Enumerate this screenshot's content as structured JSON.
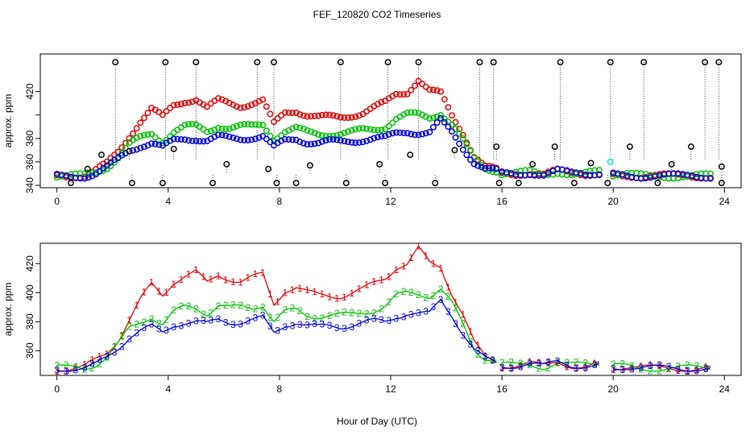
{
  "title": "FEF_120820  CO2 Timeseries",
  "xlabel": "Hour of Day (UTC)",
  "colors": {
    "s1": "#e00000",
    "s2": "#00c000",
    "s3": "#0000e0",
    "ref": "#000000",
    "aux": "#00e0e0"
  },
  "chart_data": [
    {
      "type": "scatter",
      "ylabel": "approx. ppm",
      "xlim": [
        -0.6,
        24.6
      ],
      "ylim": [
        338,
        452
      ],
      "xticks": [
        0,
        4,
        8,
        12,
        16,
        20,
        24
      ],
      "yticks": [
        340,
        360,
        380,
        400,
        420
      ],
      "ytick_labels": [
        "340",
        "360",
        "380",
        "",
        "420"
      ],
      "reference_high": [
        [
          2.1,
          445
        ],
        [
          3.9,
          445
        ],
        [
          5.0,
          445
        ],
        [
          7.2,
          445
        ],
        [
          7.8,
          445
        ],
        [
          10.2,
          445
        ],
        [
          11.9,
          445
        ],
        [
          13.0,
          445
        ],
        [
          15.2,
          445
        ],
        [
          15.7,
          445
        ],
        [
          18.1,
          445
        ],
        [
          19.9,
          445
        ],
        [
          21.1,
          445
        ],
        [
          23.3,
          445
        ],
        [
          23.8,
          445
        ]
      ],
      "reference_low": [
        [
          0.5,
          342
        ],
        [
          2.7,
          342
        ],
        [
          3.8,
          342
        ],
        [
          5.6,
          342
        ],
        [
          7.9,
          342
        ],
        [
          8.6,
          342
        ],
        [
          10.4,
          342
        ],
        [
          11.8,
          342
        ],
        [
          13.6,
          342
        ],
        [
          15.9,
          342
        ],
        [
          16.6,
          342
        ],
        [
          18.6,
          342
        ],
        [
          19.8,
          342
        ],
        [
          21.6,
          342
        ],
        [
          23.9,
          342
        ]
      ],
      "reference_mid": [
        [
          1.1,
          354
        ],
        [
          1.6,
          366
        ],
        [
          2.6,
          369
        ],
        [
          4.2,
          371
        ],
        [
          6.1,
          358
        ],
        [
          7.6,
          354
        ],
        [
          9.1,
          357
        ],
        [
          11.6,
          358
        ],
        [
          12.7,
          366
        ],
        [
          14.3,
          370
        ],
        [
          15.8,
          373
        ],
        [
          17.1,
          358
        ],
        [
          17.9,
          373
        ],
        [
          19.2,
          359
        ],
        [
          20.6,
          373
        ],
        [
          22.1,
          358
        ],
        [
          22.8,
          373
        ],
        [
          23.9,
          356
        ]
      ],
      "aux_points": [
        [
          19.9,
          360
        ]
      ],
      "series": [
        {
          "name": "1",
          "segments": [
            {
              "x": [
                0,
                0.5,
                1,
                1.4,
                1.8,
                2.2,
                2.6,
                3.0,
                3.4,
                3.8,
                4.2,
                4.6,
                5.0,
                5.4,
                5.8,
                6.2,
                6.6,
                7.0,
                7.4,
                7.8,
                8.2,
                8.6,
                9.0,
                9.4,
                9.8,
                10.2,
                10.6,
                11.0,
                11.4,
                11.8,
                12.2,
                12.6,
                13.0,
                13.4,
                13.8,
                14.2,
                14.6,
                15.0,
                15.4,
                15.8
              ],
              "y": [
                348,
                348,
                349,
                353,
                358,
                368,
                382,
                395,
                405,
                398,
                408,
                412,
                414,
                406,
                412,
                410,
                408,
                410,
                412,
                392,
                402,
                404,
                400,
                398,
                398,
                398,
                400,
                402,
                406,
                410,
                418,
                420,
                430,
                420,
                418,
                400,
                385,
                365,
                355,
                353
              ]
            },
            {
              "x": [
                16.0,
                16.5,
                17.0,
                17.5,
                18.0,
                18.5,
                19.0,
                19.5
              ],
              "y": [
                350,
                350,
                351,
                349,
                352,
                350,
                350,
                351
              ]
            },
            {
              "x": [
                20.0,
                20.5,
                21.0,
                21.5,
                22.0,
                22.5,
                23.0,
                23.5
              ],
              "y": [
                349,
                349,
                348,
                348,
                348,
                348,
                348,
                348
              ]
            }
          ]
        },
        {
          "name": "2",
          "segments": [
            {
              "x": [
                0,
                0.5,
                1,
                1.4,
                1.8,
                2.2,
                2.6,
                3.0,
                3.4,
                3.8,
                4.2,
                4.6,
                5.0,
                5.4,
                5.8,
                6.2,
                6.6,
                7.0,
                7.4,
                7.8,
                8.2,
                8.6,
                9.0,
                9.4,
                9.8,
                10.2,
                10.6,
                11.0,
                11.4,
                11.8,
                12.2,
                12.6,
                13.0,
                13.4,
                13.8,
                14.2,
                14.6,
                15.0,
                15.4,
                15.8
              ],
              "y": [
                348,
                348,
                348,
                351,
                356,
                364,
                375,
                380,
                384,
                378,
                386,
                390,
                390,
                386,
                391,
                389,
                390,
                390,
                392,
                380,
                386,
                388,
                385,
                384,
                384,
                384,
                385,
                387,
                388,
                390,
                397,
                400,
                400,
                398,
                402,
                392,
                378,
                362,
                355,
                353
              ]
            },
            {
              "x": [
                16.0,
                16.5,
                17.0,
                17.5,
                18.0,
                18.5,
                19.0,
                19.5
              ],
              "y": [
                350,
                350,
                351,
                349,
                352,
                350,
                350,
                351
              ]
            },
            {
              "x": [
                20.0,
                20.5,
                21.0,
                21.5,
                22.0,
                22.5,
                23.0,
                23.5
              ],
              "y": [
                349,
                349,
                348,
                348,
                348,
                348,
                348,
                348
              ]
            }
          ]
        },
        {
          "name": "3",
          "segments": [
            {
              "x": [
                0,
                0.5,
                1,
                1.4,
                1.8,
                2.2,
                2.6,
                3.0,
                3.4,
                3.8,
                4.2,
                4.6,
                5.0,
                5.4,
                5.8,
                6.2,
                6.6,
                7.0,
                7.4,
                7.8,
                8.2,
                8.6,
                9.0,
                9.4,
                9.8,
                10.2,
                10.6,
                11.0,
                11.4,
                11.8,
                12.2,
                12.6,
                13.0,
                13.4,
                13.8,
                14.2,
                14.6,
                15.0,
                15.4,
                15.8
              ],
              "y": [
                348,
                348,
                348,
                350,
                355,
                362,
                370,
                374,
                376,
                372,
                378,
                380,
                380,
                378,
                381,
                380,
                380,
                381,
                382,
                372,
                378,
                380,
                377,
                376,
                377,
                377,
                378,
                379,
                380,
                380,
                384,
                386,
                385,
                385,
                395,
                385,
                372,
                360,
                354,
                352
              ]
            },
            {
              "x": [
                16.0,
                16.5,
                17.0,
                17.5,
                18.0,
                18.5,
                19.0,
                19.5
              ],
              "y": [
                350,
                350,
                351,
                349,
                352,
                350,
                350,
                351
              ]
            },
            {
              "x": [
                20.0,
                20.5,
                21.0,
                21.5,
                22.0,
                22.5,
                23.0,
                23.5
              ],
              "y": [
                349,
                349,
                348,
                348,
                348,
                348,
                348,
                348
              ]
            }
          ]
        }
      ]
    },
    {
      "type": "line",
      "ylabel": "approx. ppm",
      "xlim": [
        -0.6,
        24.6
      ],
      "ylim": [
        343,
        434
      ],
      "xticks": [
        0,
        4,
        8,
        12,
        16,
        20,
        24
      ],
      "yticks": [
        360,
        380,
        400,
        420
      ],
      "series_ref": "same as panel 1 series"
    }
  ]
}
